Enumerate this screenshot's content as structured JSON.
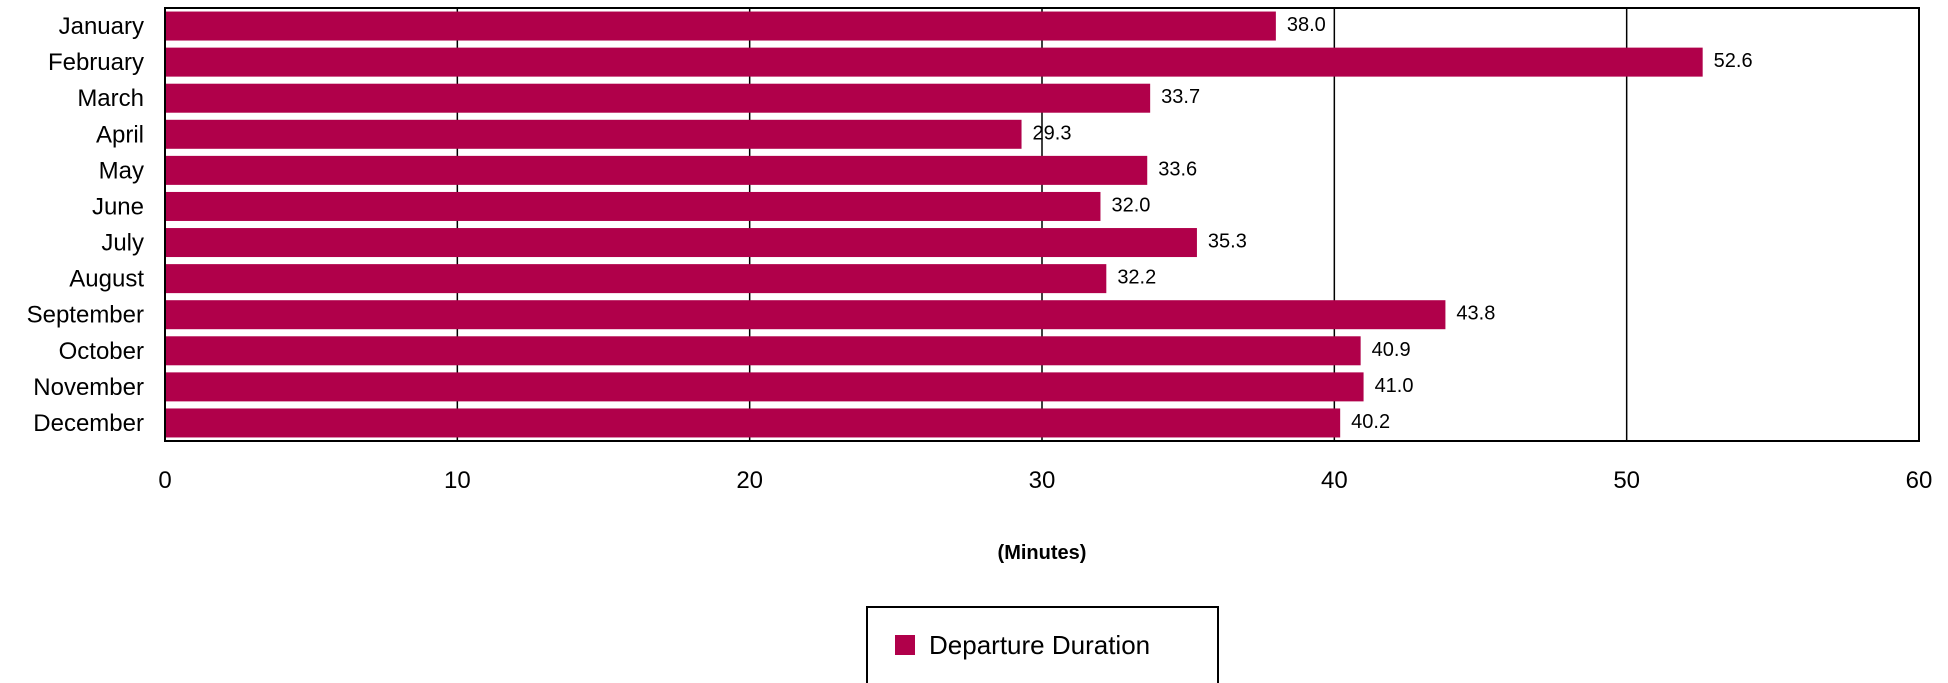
{
  "chart_data": {
    "type": "bar",
    "orientation": "horizontal",
    "categories": [
      "January",
      "February",
      "March",
      "April",
      "May",
      "June",
      "July",
      "August",
      "September",
      "October",
      "November",
      "December"
    ],
    "series": [
      {
        "name": "Departure Duration",
        "color": "#b0004a",
        "values": [
          38.0,
          52.6,
          33.7,
          29.3,
          33.6,
          32.0,
          35.3,
          32.2,
          43.8,
          40.9,
          41.0,
          40.2
        ],
        "labels": [
          "38.0",
          "52.6",
          "33.7",
          "29.3",
          "33.6",
          "32.0",
          "35.3",
          "32.2",
          "43.8",
          "40.9",
          "41.0",
          "40.2"
        ]
      }
    ],
    "xlabel": "(Minutes)",
    "xlim": [
      0,
      60
    ],
    "xticks": [
      "0",
      "10",
      "20",
      "30",
      "40",
      "50",
      "60"
    ],
    "grid": "vertical",
    "legend": "bottom-center"
  }
}
